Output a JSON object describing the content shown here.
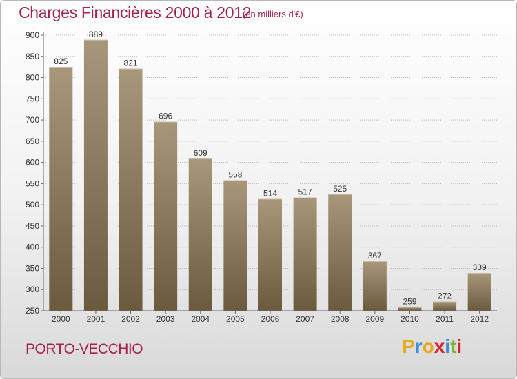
{
  "header": {
    "title": "Charges Financières 2000 à 2012",
    "unit_note": "(en milliers d'€)"
  },
  "footer": {
    "location": "PORTO-VECCHIO",
    "brand_letters": [
      "P",
      "r",
      "o",
      "x",
      "i",
      "t",
      "i"
    ],
    "brand_colors": [
      "#e8a81c",
      "#3a8ed6",
      "#e8a81c",
      "#d9232e",
      "#3a8ed6",
      "#7ab839",
      "#d9232e"
    ]
  },
  "colors": {
    "text_accent": "#a5204f",
    "bar_top": "#a8977a",
    "bar_bottom": "#6b5a3e",
    "grid": "#bdbdbd",
    "axis": "#666666"
  },
  "chart_data": {
    "type": "bar",
    "categories": [
      "2000",
      "2001",
      "2002",
      "2003",
      "2004",
      "2005",
      "2006",
      "2007",
      "2008",
      "2009",
      "2010",
      "2011",
      "2012"
    ],
    "values": [
      825,
      889,
      821,
      696,
      609,
      558,
      514,
      517,
      525,
      367,
      259,
      272,
      339
    ],
    "data_labels": [
      "825",
      "889",
      "821",
      "696",
      "609",
      "558",
      "514",
      "517",
      "525",
      "367",
      "259",
      "272",
      "339"
    ],
    "y_ticks": [
      "250",
      "300",
      "350",
      "400",
      "450",
      "500",
      "550",
      "600",
      "650",
      "700",
      "750",
      "800",
      "850",
      "900"
    ],
    "ylim": [
      250,
      900
    ],
    "grid": true,
    "legend": "none"
  }
}
